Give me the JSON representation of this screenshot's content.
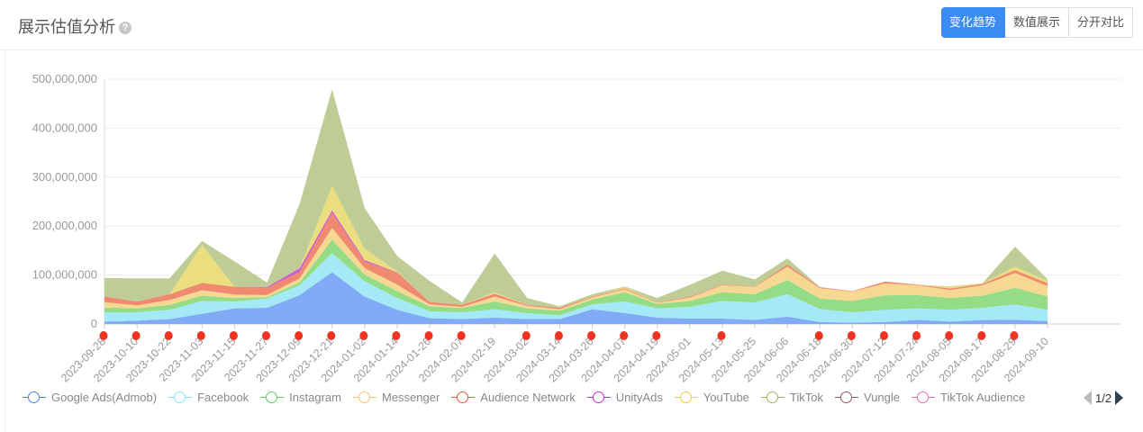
{
  "header": {
    "title": "展示估值分析",
    "help_icon": "?",
    "buttons": [
      "变化趋势",
      "数值展示",
      "分开对比"
    ],
    "active_button": 0
  },
  "legend_pager": {
    "page": "1/2"
  },
  "chart_data": {
    "type": "area",
    "stacked": true,
    "title": "",
    "xlabel": "",
    "ylabel": "",
    "ylim": [
      0,
      500000000
    ],
    "yticks": [
      "0",
      "100,000,000",
      "200,000,000",
      "300,000,000",
      "400,000,000",
      "500,000,000"
    ],
    "grid": true,
    "legend_placement": "bottom",
    "x": [
      "2023-09-28",
      "2023-10-10",
      "2023-10-22",
      "2023-11-03",
      "2023-11-15",
      "2023-11-27",
      "2023-12-09",
      "2023-12-21",
      "2024-01-02",
      "2024-01-14",
      "2024-01-26",
      "2024-02-07",
      "2024-02-19",
      "2024-03-02",
      "2024-03-14",
      "2024-03-26",
      "2024-04-07",
      "2024-04-19",
      "2024-05-01",
      "2024-05-13",
      "2024-05-25",
      "2024-06-06",
      "2024-06-18",
      "2024-06-30",
      "2024-07-12",
      "2024-07-24",
      "2024-08-05",
      "2024-08-17",
      "2024-08-29",
      "2024-09-10"
    ],
    "marker_indices": [
      0,
      1,
      2,
      3,
      4,
      5,
      6,
      7,
      8,
      9,
      10,
      11,
      13,
      14,
      15,
      16,
      17,
      19,
      22,
      23,
      24,
      25,
      26,
      27,
      28
    ],
    "marker_color": "#ee3322",
    "units": "millions",
    "series": [
      {
        "name": "Google Ads(Admob)",
        "color": "#4a80e8",
        "fill": "#7aa7f7",
        "values": [
          5,
          7,
          10,
          21,
          32,
          33,
          59,
          106,
          56,
          29,
          12,
          10,
          13,
          10,
          10,
          30,
          22.5,
          13,
          11,
          11,
          8.5,
          15,
          4,
          3,
          4,
          8.5,
          5,
          8,
          8.5,
          6
        ]
      },
      {
        "name": "Facebook",
        "color": "#7fe3f5",
        "fill": "#9fe8f6",
        "values": [
          19,
          17,
          19,
          26,
          14,
          19,
          20,
          38.5,
          31,
          24,
          14,
          14,
          17,
          12,
          8,
          10,
          23.5,
          19,
          24,
          36,
          35.5,
          46,
          26.5,
          21,
          25,
          23.5,
          24,
          25,
          31.5,
          23
        ]
      },
      {
        "name": "Instagram",
        "color": "#5ccf5c",
        "fill": "#8edb80",
        "values": [
          9.5,
          8,
          10,
          11,
          7,
          3,
          6,
          27.5,
          14,
          14,
          10,
          9,
          16,
          10,
          9,
          10,
          19,
          9,
          12,
          18,
          17,
          29,
          21.5,
          23,
          29.5,
          27,
          24,
          25,
          34,
          27
        ]
      },
      {
        "name": "Messenger",
        "color": "#f5c66a",
        "fill": "#f7d68c",
        "values": [
          11,
          6,
          10,
          11,
          7,
          4,
          8,
          24,
          13,
          13.5,
          4,
          2,
          10,
          5,
          3,
          4,
          6,
          2,
          7,
          14,
          15,
          27,
          21,
          19,
          24.5,
          20,
          16.5,
          21,
          30,
          21.5
        ]
      },
      {
        "name": "Audience Network",
        "color": "#ee5533",
        "fill": "#ee8468",
        "values": [
          11.5,
          8,
          12,
          15,
          16,
          15,
          13,
          31,
          13,
          25.5,
          5,
          4,
          6,
          2,
          3,
          1.5,
          2,
          1,
          2,
          1.5,
          1,
          5,
          2,
          1,
          3.6,
          1.5,
          3,
          3,
          6,
          6
        ]
      },
      {
        "name": "UnityAds",
        "color": "#c030c0",
        "fill": "#cc55cc",
        "values": [
          0,
          0,
          0,
          0,
          0,
          1.5,
          8,
          5,
          3.5,
          0,
          0,
          0,
          0,
          0,
          0,
          0,
          0,
          0,
          0,
          0,
          0,
          0,
          0,
          0,
          0,
          0,
          0,
          0,
          0,
          0
        ]
      },
      {
        "name": "YouTube",
        "color": "#ecd040",
        "fill": "#e9dc78",
        "values": [
          0,
          0,
          0,
          77,
          0,
          0,
          0,
          50,
          23.5,
          1,
          0,
          0,
          3,
          0,
          0,
          0,
          2.6,
          0,
          0,
          0,
          0,
          0,
          0,
          0,
          0,
          0,
          3.5,
          1.5,
          7,
          4.5
        ]
      },
      {
        "name": "TikTok",
        "color": "#9cb25c",
        "fill": "#bac98f",
        "values": [
          38,
          47,
          32,
          8.5,
          52,
          9,
          131,
          197,
          83,
          32,
          43,
          5,
          79,
          14,
          3,
          5.5,
          1,
          9,
          24,
          28.5,
          14,
          12,
          0.6,
          0,
          0,
          0,
          1,
          0,
          41,
          3.5
        ]
      },
      {
        "name": "Vungle",
        "color": "#8b5a5a",
        "fill": "#a07070",
        "values": [
          0,
          0,
          0,
          0,
          0,
          0,
          0,
          0,
          0,
          0,
          0,
          0,
          0,
          0,
          0,
          0,
          0,
          0,
          0,
          0,
          0,
          0,
          0,
          0,
          0,
          0,
          0,
          0,
          0,
          0
        ]
      },
      {
        "name": "TikTok Audience",
        "color": "#e070b0",
        "fill": "#e08cc0",
        "values": [
          0,
          0,
          0,
          0,
          0,
          0,
          0,
          0,
          0,
          0,
          0,
          0,
          0,
          0,
          0,
          0,
          0,
          0,
          0,
          0,
          0,
          0,
          0,
          0,
          0,
          0,
          0,
          0,
          0,
          0
        ]
      }
    ]
  }
}
